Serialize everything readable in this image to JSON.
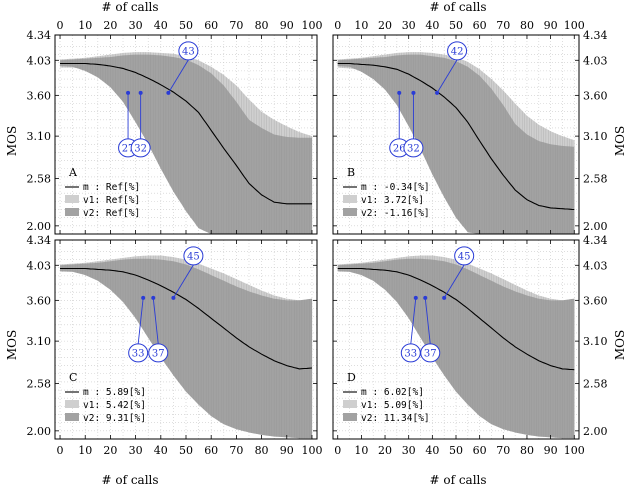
{
  "colors": {
    "mean_line": "#000000",
    "v1_band": "#cfcfcf",
    "v2_band": "#a2a2a2",
    "annotation": "#2a3cd6",
    "grid": "#c9c9c9"
  },
  "chart_data": {
    "type": "area",
    "x_title": "# of calls",
    "y_title": "MOS",
    "xlim": [
      -2,
      102
    ],
    "ylim": [
      1.9,
      4.34
    ],
    "xticks": [
      "0",
      "10",
      "20",
      "30",
      "40",
      "50",
      "60",
      "70",
      "80",
      "90",
      "100"
    ],
    "yticks": [
      "2.00",
      "2.58",
      "3.10",
      "3.60",
      "4.03",
      "4.34"
    ],
    "grid": true,
    "legend_placement": "bottom-left",
    "panels": [
      {
        "label": "A",
        "legend": [
          {
            "key": "m",
            "text": "m : Ref[%]"
          },
          {
            "key": "v1",
            "text": "v1: Ref[%]"
          },
          {
            "key": "v2",
            "text": "v2: Ref[%]"
          }
        ],
        "annotations": [
          {
            "text": "27",
            "x": 27,
            "y": 3.63
          },
          {
            "text": "32",
            "x": 32,
            "y": 3.63
          },
          {
            "text": "43",
            "x": 43,
            "y": 3.63
          }
        ],
        "series": {
          "x": [
            0,
            5,
            10,
            15,
            20,
            25,
            30,
            35,
            40,
            45,
            50,
            55,
            60,
            65,
            70,
            75,
            80,
            85,
            90,
            95,
            100
          ],
          "m": [
            3.99,
            3.99,
            3.99,
            3.98,
            3.96,
            3.93,
            3.88,
            3.81,
            3.73,
            3.64,
            3.53,
            3.39,
            3.17,
            2.95,
            2.74,
            2.52,
            2.38,
            2.29,
            2.27,
            2.27,
            2.27
          ],
          "v1_low": [
            3.94,
            3.94,
            3.92,
            3.86,
            3.77,
            3.64,
            3.44,
            3.22,
            2.98,
            2.74,
            2.5,
            2.27,
            2.05,
            1.9,
            1.9,
            1.9,
            1.9,
            1.9,
            1.9,
            1.9,
            1.9
          ],
          "v1_high": [
            4.04,
            4.05,
            4.06,
            4.08,
            4.1,
            4.12,
            4.13,
            4.13,
            4.12,
            4.11,
            4.08,
            4.03,
            3.95,
            3.85,
            3.72,
            3.55,
            3.4,
            3.3,
            3.22,
            3.15,
            3.1
          ],
          "v2_low": [
            3.96,
            3.95,
            3.9,
            3.82,
            3.7,
            3.52,
            3.27,
            3.0,
            2.7,
            2.42,
            2.18,
            1.97,
            1.9,
            1.9,
            1.9,
            1.9,
            1.9,
            1.9,
            1.9,
            1.9,
            1.9
          ],
          "v2_high": [
            4.03,
            4.04,
            4.05,
            4.06,
            4.07,
            4.09,
            4.1,
            4.1,
            4.09,
            4.07,
            4.04,
            3.97,
            3.87,
            3.72,
            3.52,
            3.3,
            3.2,
            3.12,
            3.09,
            3.08,
            3.08
          ]
        }
      },
      {
        "label": "B",
        "legend": [
          {
            "key": "m",
            "text": "m : -0.34[%]"
          },
          {
            "key": "v1",
            "text": "v1: 3.72[%]"
          },
          {
            "key": "v2",
            "text": "v2: -1.16[%]"
          }
        ],
        "annotations": [
          {
            "text": "26",
            "x": 26,
            "y": 3.63
          },
          {
            "text": "32",
            "x": 32,
            "y": 3.63
          },
          {
            "text": "42",
            "x": 42,
            "y": 3.63
          }
        ],
        "series": {
          "x": [
            0,
            5,
            10,
            15,
            20,
            25,
            30,
            35,
            40,
            45,
            50,
            55,
            60,
            65,
            70,
            75,
            80,
            85,
            90,
            95,
            100
          ],
          "m": [
            3.99,
            3.99,
            3.98,
            3.97,
            3.95,
            3.92,
            3.86,
            3.78,
            3.69,
            3.58,
            3.45,
            3.27,
            3.04,
            2.82,
            2.62,
            2.44,
            2.32,
            2.25,
            2.22,
            2.21,
            2.2
          ],
          "v1_low": [
            3.94,
            3.93,
            3.91,
            3.85,
            3.75,
            3.6,
            3.4,
            3.17,
            2.92,
            2.67,
            2.44,
            2.2,
            2.0,
            1.9,
            1.9,
            1.9,
            1.9,
            1.9,
            1.9,
            1.9,
            1.9
          ],
          "v1_high": [
            4.04,
            4.05,
            4.06,
            4.08,
            4.1,
            4.12,
            4.13,
            4.13,
            4.12,
            4.1,
            4.07,
            4.01,
            3.92,
            3.8,
            3.66,
            3.5,
            3.35,
            3.24,
            3.16,
            3.1,
            3.05
          ],
          "v2_low": [
            3.96,
            3.95,
            3.89,
            3.8,
            3.67,
            3.48,
            3.22,
            2.94,
            2.63,
            2.35,
            2.1,
            1.92,
            1.9,
            1.9,
            1.9,
            1.9,
            1.9,
            1.9,
            1.9,
            1.9,
            1.9
          ],
          "v2_high": [
            4.03,
            4.04,
            4.05,
            4.06,
            4.07,
            4.09,
            4.1,
            4.1,
            4.08,
            4.06,
            4.02,
            3.95,
            3.84,
            3.68,
            3.48,
            3.25,
            3.12,
            3.04,
            3.0,
            2.98,
            2.97
          ]
        }
      },
      {
        "label": "C",
        "legend": [
          {
            "key": "m",
            "text": "m : 5.89[%]"
          },
          {
            "key": "v1",
            "text": "v1: 5.42[%]"
          },
          {
            "key": "v2",
            "text": "v2: 9.31[%]"
          }
        ],
        "annotations": [
          {
            "text": "33",
            "x": 33,
            "y": 3.63
          },
          {
            "text": "37",
            "x": 37,
            "y": 3.63
          },
          {
            "text": "45",
            "x": 45,
            "y": 3.63
          }
        ],
        "series": {
          "x": [
            0,
            5,
            10,
            15,
            20,
            25,
            30,
            35,
            40,
            45,
            50,
            55,
            60,
            65,
            70,
            75,
            80,
            85,
            90,
            95,
            100
          ],
          "m": [
            3.99,
            3.99,
            3.99,
            3.98,
            3.97,
            3.95,
            3.91,
            3.85,
            3.78,
            3.7,
            3.61,
            3.5,
            3.38,
            3.26,
            3.14,
            3.03,
            2.94,
            2.86,
            2.8,
            2.76,
            2.77
          ],
          "v1_low": [
            3.95,
            3.95,
            3.93,
            3.88,
            3.8,
            3.68,
            3.5,
            3.3,
            3.08,
            2.86,
            2.66,
            2.48,
            2.32,
            2.2,
            2.12,
            2.06,
            2.02,
            2.0,
            1.98,
            1.96,
            1.95
          ],
          "v1_high": [
            4.04,
            4.05,
            4.06,
            4.08,
            4.1,
            4.12,
            4.14,
            4.15,
            4.15,
            4.13,
            4.1,
            4.05,
            3.99,
            3.93,
            3.86,
            3.79,
            3.72,
            3.66,
            3.62,
            3.6,
            3.62
          ],
          "v2_low": [
            3.96,
            3.95,
            3.91,
            3.84,
            3.73,
            3.58,
            3.38,
            3.14,
            2.9,
            2.68,
            2.48,
            2.32,
            2.18,
            2.08,
            2.02,
            1.98,
            1.95,
            1.93,
            1.92,
            1.91,
            1.91
          ],
          "v2_high": [
            4.03,
            4.04,
            4.05,
            4.06,
            4.08,
            4.1,
            4.11,
            4.11,
            4.1,
            4.08,
            4.04,
            3.98,
            3.91,
            3.84,
            3.77,
            3.71,
            3.66,
            3.62,
            3.6,
            3.6,
            3.62
          ]
        }
      },
      {
        "label": "D",
        "legend": [
          {
            "key": "m",
            "text": "m : 6.02[%]"
          },
          {
            "key": "v1",
            "text": "v1: 5.09[%]"
          },
          {
            "key": "v2",
            "text": "v2: 11.34[%]"
          }
        ],
        "annotations": [
          {
            "text": "33",
            "x": 33,
            "y": 3.63
          },
          {
            "text": "37",
            "x": 37,
            "y": 3.63
          },
          {
            "text": "45",
            "x": 45,
            "y": 3.63
          }
        ],
        "series": {
          "x": [
            0,
            5,
            10,
            15,
            20,
            25,
            30,
            35,
            40,
            45,
            50,
            55,
            60,
            65,
            70,
            75,
            80,
            85,
            90,
            95,
            100
          ],
          "m": [
            3.99,
            3.99,
            3.99,
            3.98,
            3.97,
            3.95,
            3.91,
            3.85,
            3.78,
            3.7,
            3.61,
            3.5,
            3.38,
            3.26,
            3.14,
            3.03,
            2.94,
            2.86,
            2.8,
            2.76,
            2.75
          ],
          "v1_low": [
            3.95,
            3.95,
            3.93,
            3.88,
            3.8,
            3.68,
            3.5,
            3.3,
            3.08,
            2.86,
            2.66,
            2.48,
            2.32,
            2.2,
            2.12,
            2.06,
            2.02,
            2.0,
            1.98,
            1.96,
            1.95
          ],
          "v1_high": [
            4.04,
            4.05,
            4.06,
            4.08,
            4.1,
            4.12,
            4.14,
            4.15,
            4.15,
            4.13,
            4.1,
            4.05,
            3.99,
            3.93,
            3.86,
            3.79,
            3.72,
            3.66,
            3.62,
            3.6,
            3.62
          ],
          "v2_low": [
            3.96,
            3.95,
            3.91,
            3.84,
            3.73,
            3.58,
            3.38,
            3.14,
            2.9,
            2.68,
            2.48,
            2.32,
            2.18,
            2.08,
            2.02,
            1.98,
            1.95,
            1.93,
            1.92,
            1.91,
            1.91
          ],
          "v2_high": [
            4.03,
            4.04,
            4.05,
            4.06,
            4.08,
            4.1,
            4.11,
            4.11,
            4.1,
            4.08,
            4.04,
            3.98,
            3.91,
            3.84,
            3.77,
            3.71,
            3.66,
            3.62,
            3.6,
            3.6,
            3.62
          ]
        }
      }
    ]
  }
}
